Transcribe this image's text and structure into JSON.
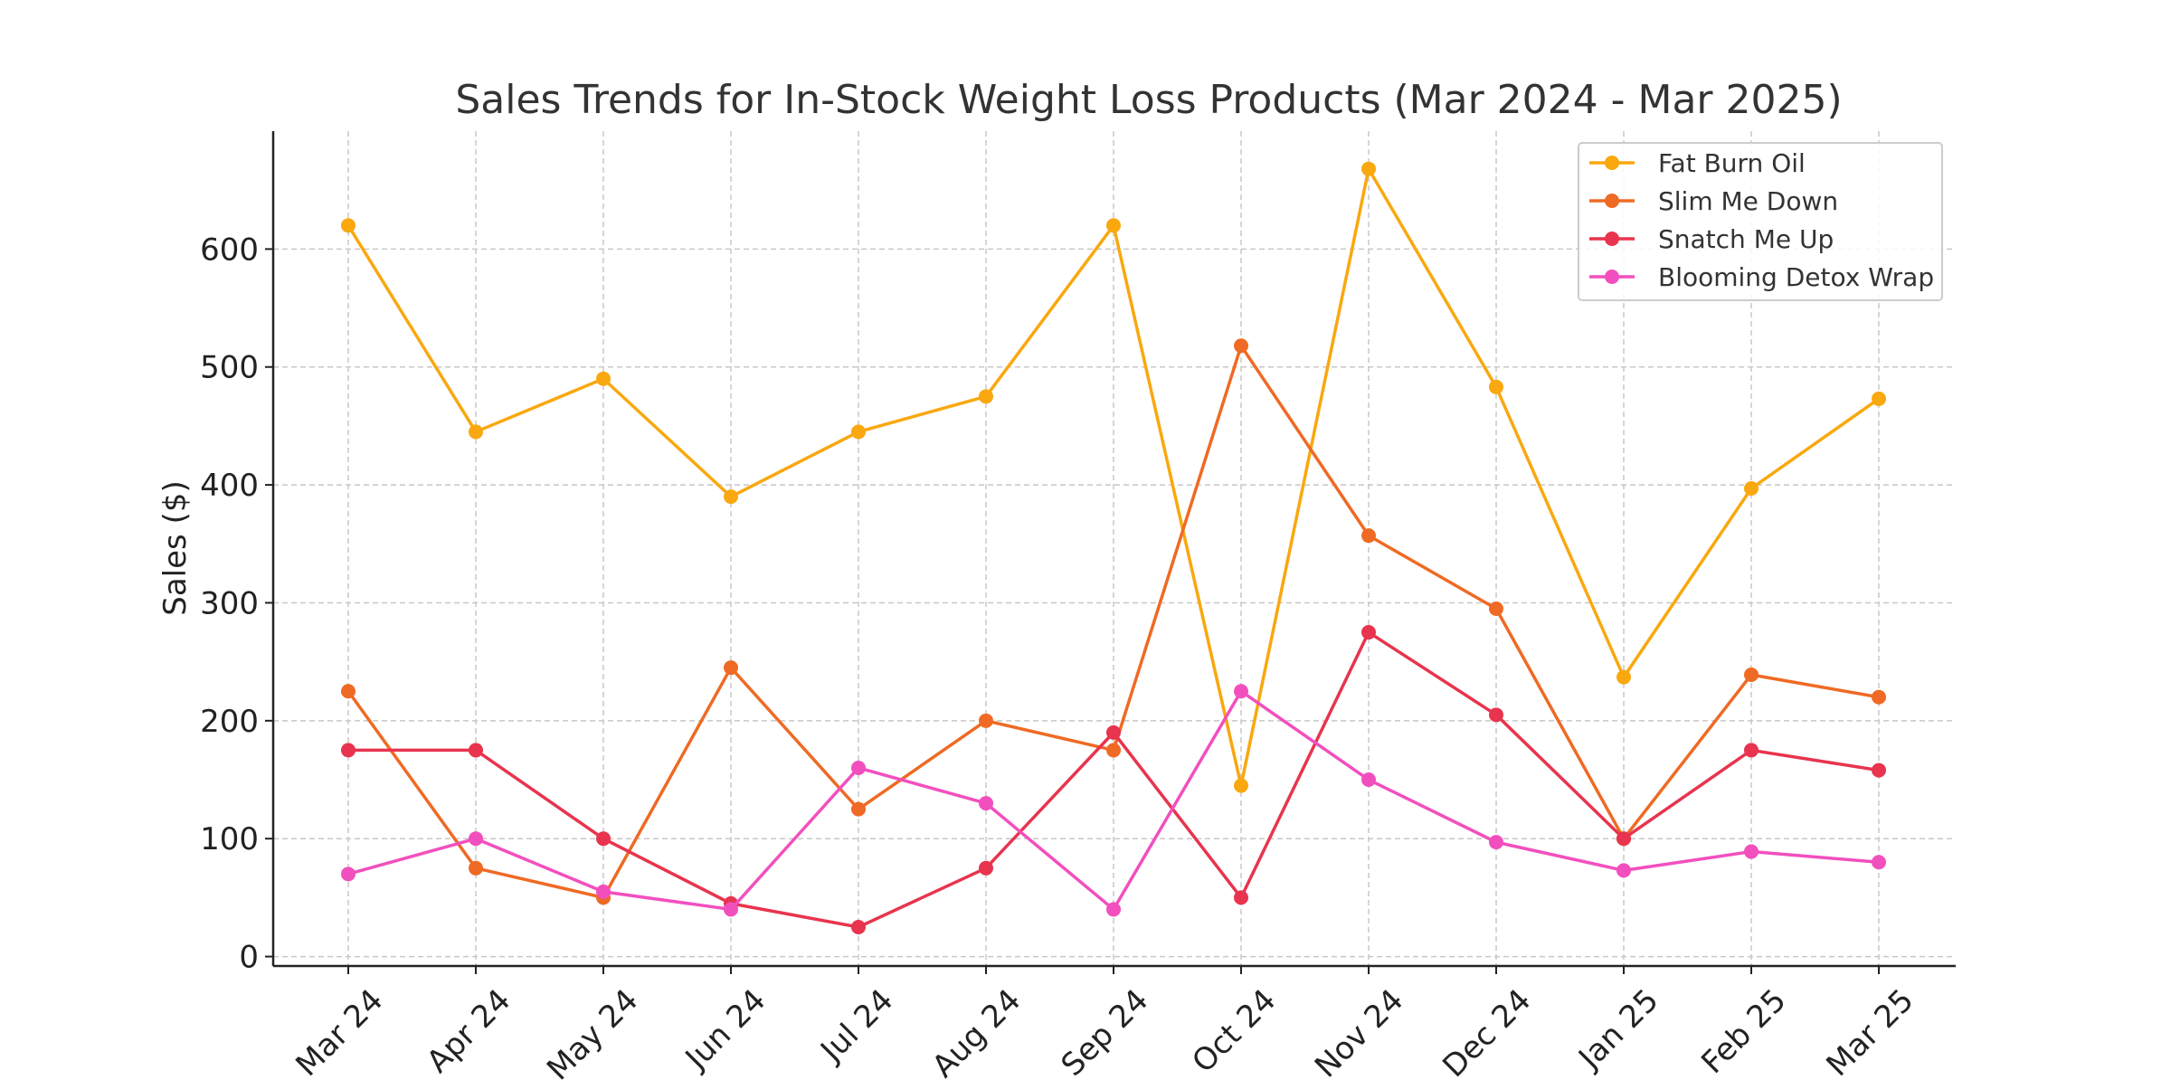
{
  "chart_data": {
    "type": "line",
    "title": "Sales Trends for In-Stock Weight Loss Products (Mar 2024 - Mar 2025)",
    "xlabel": "",
    "ylabel": "Sales ($)",
    "categories": [
      "Mar 24",
      "Apr 24",
      "May 24",
      "Jun 24",
      "Jul 24",
      "Aug 24",
      "Sep 24",
      "Oct 24",
      "Nov 24",
      "Dec 24",
      "Jan 25",
      "Feb 25",
      "Mar 25"
    ],
    "y_ticks": [
      0,
      100,
      200,
      300,
      400,
      500,
      600
    ],
    "ylim": [
      -8,
      700
    ],
    "grid": true,
    "legend_position": "top-right",
    "series": [
      {
        "name": "Fat Burn Oil",
        "color": "#f9a80f",
        "values": [
          620,
          445,
          490,
          390,
          445,
          475,
          620,
          145,
          668,
          483,
          237,
          397,
          473
        ]
      },
      {
        "name": "Slim Me Down",
        "color": "#ef6a24",
        "values": [
          225,
          75,
          50,
          245,
          125,
          200,
          175,
          518,
          357,
          295,
          100,
          239,
          220
        ]
      },
      {
        "name": "Snatch Me Up",
        "color": "#e8344e",
        "values": [
          175,
          175,
          100,
          45,
          25,
          75,
          190,
          50,
          275,
          205,
          100,
          175,
          158
        ]
      },
      {
        "name": "Blooming Detox Wrap",
        "color": "#f24fbe",
        "values": [
          70,
          100,
          55,
          40,
          160,
          130,
          40,
          225,
          150,
          97,
          73,
          89,
          80
        ]
      }
    ]
  }
}
